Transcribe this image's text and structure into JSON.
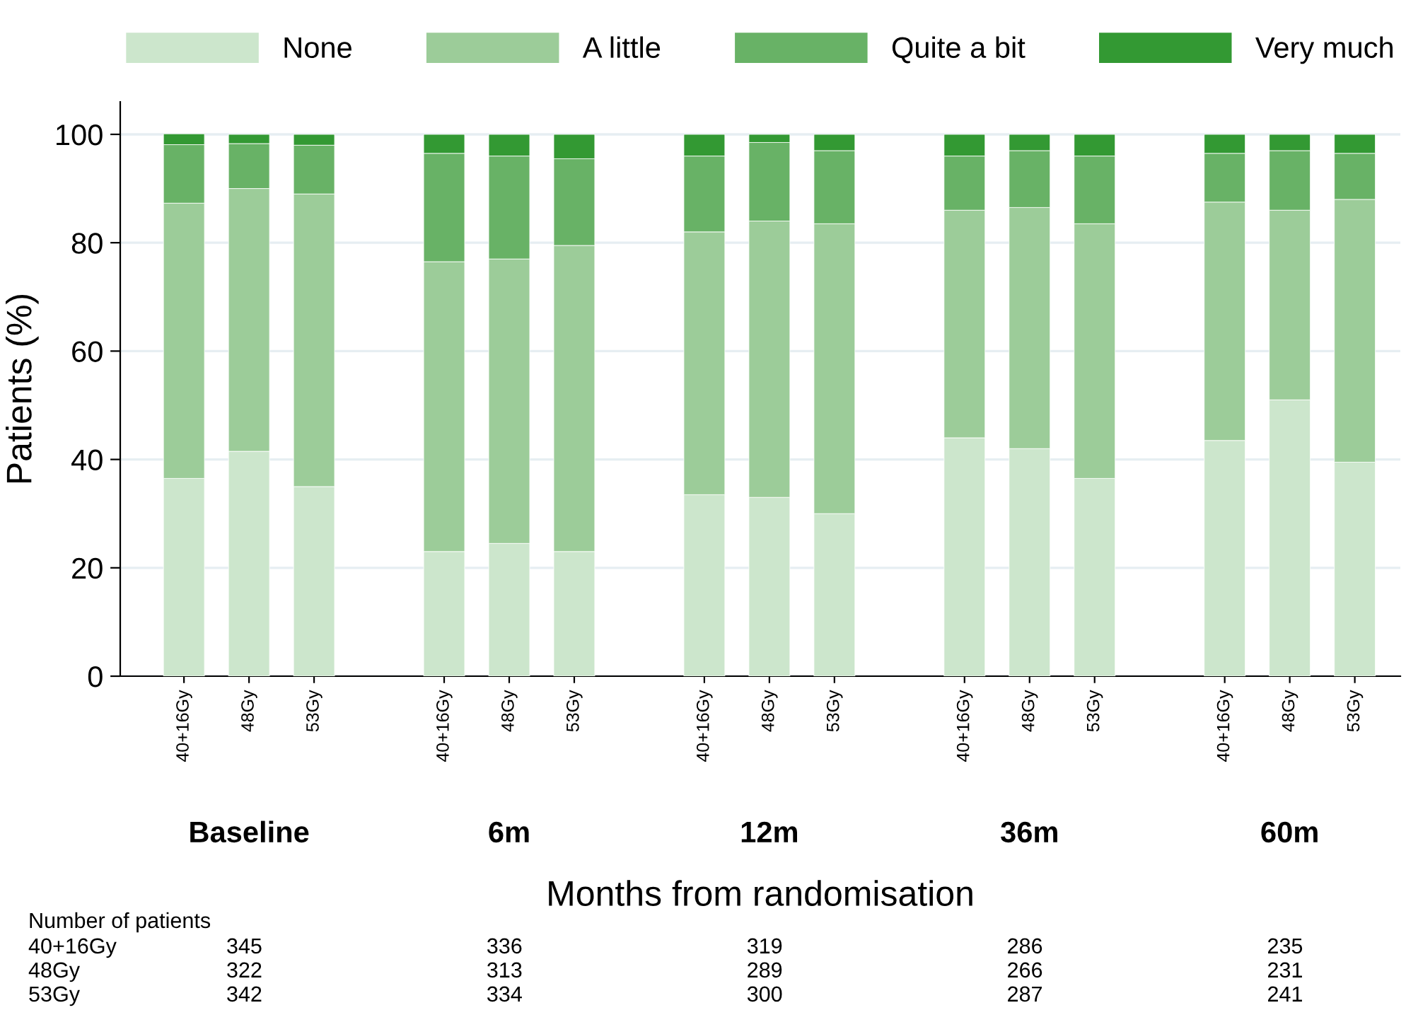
{
  "chart_data": {
    "type": "bar",
    "stacked": true,
    "xlabel": "Months from randomisation",
    "ylabel": "Patients (%)",
    "categories": [
      "40+16Gy",
      "48Gy",
      "53Gy",
      null,
      "40+16Gy",
      "48Gy",
      "53Gy",
      null,
      "40+16Gy",
      "48Gy",
      "53Gy",
      null,
      "40+16Gy",
      "48Gy",
      "53Gy",
      null,
      "40+16Gy",
      "48Gy",
      "53Gy"
    ],
    "series": [
      {
        "name": "None",
        "color": "#cce6cc",
        "values": [
          36.5,
          41.5,
          35,
          null,
          23,
          24.5,
          23,
          null,
          33.5,
          33,
          30,
          null,
          44,
          42,
          36.5,
          null,
          43.5,
          51,
          39.5
        ]
      },
      {
        "name": "A little",
        "color": "#9ccc99",
        "values": [
          50.8,
          48.5,
          54,
          null,
          53.5,
          52.5,
          56.5,
          null,
          48.5,
          51,
          53.5,
          null,
          42,
          44.5,
          47,
          null,
          44,
          35,
          48.5
        ]
      },
      {
        "name": "Quite a bit",
        "color": "#68b266",
        "values": [
          10.8,
          8.3,
          9,
          null,
          20,
          19,
          16,
          null,
          14,
          14.5,
          13.5,
          null,
          10,
          10.5,
          12.5,
          null,
          9,
          11,
          8.5
        ]
      },
      {
        "name": "Very much",
        "color": "#339933",
        "values": [
          2,
          1.7,
          2,
          null,
          3.5,
          4,
          4.5,
          null,
          4,
          1.5,
          3,
          null,
          4,
          3,
          4,
          null,
          3.5,
          3,
          3.5
        ]
      }
    ],
    "ylim": [
      0,
      106
    ],
    "yticks": [
      0,
      20,
      40,
      60,
      80,
      100
    ],
    "grid": "y",
    "legend": "top",
    "annotations": [
      "Baseline",
      "6m",
      "12m",
      "36m",
      "60m",
      "Number of patients",
      "40+16Gy",
      "345",
      "336",
      "319",
      "286",
      "235",
      "48Gy",
      "322",
      "313",
      "289",
      "266",
      "231",
      "53Gy",
      "342",
      "334",
      "300",
      "287",
      "241"
    ]
  }
}
